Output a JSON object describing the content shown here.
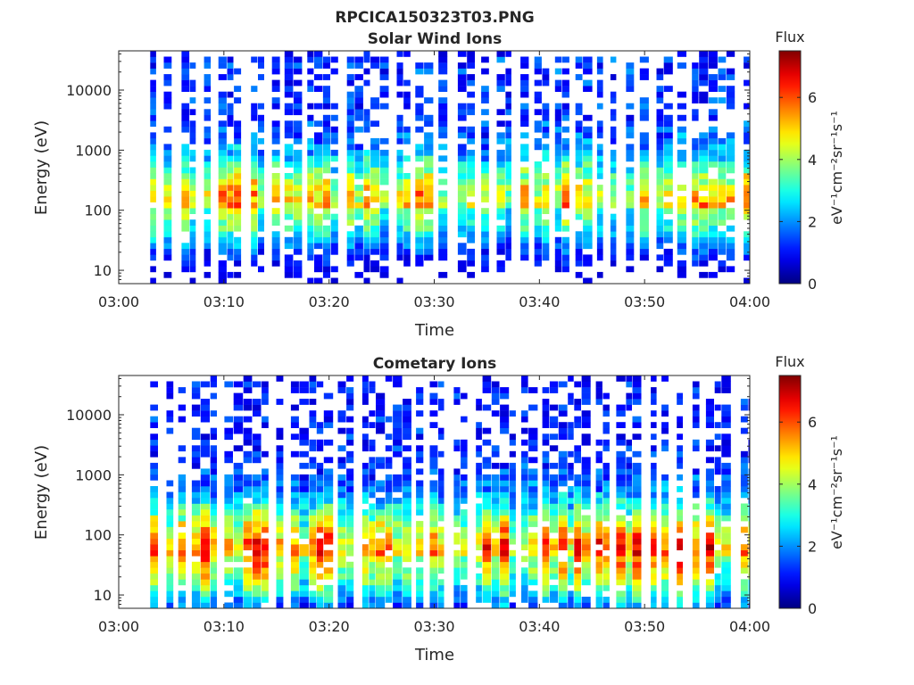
{
  "figure": {
    "title": "RPCICA150323T03.PNG",
    "colors": {
      "text": "#262626",
      "background": "#ffffff",
      "missing": "#ffffff"
    }
  },
  "chart_data": [
    {
      "type": "heatmap",
      "title": "Solar Wind Ions",
      "xlabel": "Time",
      "ylabel": "Energy (eV)",
      "x_range": [
        "03:00",
        "04:00"
      ],
      "x_ticks": [
        "03:00",
        "03:10",
        "03:20",
        "03:30",
        "03:40",
        "03:50",
        "04:00"
      ],
      "y_scale": "log",
      "y_range": [
        6,
        45000
      ],
      "y_ticks": [
        {
          "value": 10,
          "label": "10"
        },
        {
          "value": 100,
          "label": "100"
        },
        {
          "value": 1000,
          "label": "1000"
        },
        {
          "value": 10000,
          "label": "10000"
        }
      ],
      "colorbar": {
        "title": "Flux",
        "label": "eV⁻¹cm⁻²sr⁻¹s⁻¹",
        "range": [
          0,
          7.5
        ],
        "ticks": [
          0,
          2,
          4,
          6
        ],
        "colormap": "jet"
      },
      "data_start": "03:03",
      "data_end": "04:00",
      "energy_profile": {
        "peak_energy_eV": 120,
        "peak_flux": 4.7,
        "width_decades": 0.55,
        "high_energy_tail": 1.2
      }
    },
    {
      "type": "heatmap",
      "title": "Cometary Ions",
      "xlabel": "Time",
      "ylabel": "Energy (eV)",
      "x_range": [
        "03:00",
        "04:00"
      ],
      "x_ticks": [
        "03:00",
        "03:10",
        "03:20",
        "03:30",
        "03:40",
        "03:50",
        "04:00"
      ],
      "y_scale": "log",
      "y_range": [
        6,
        45000
      ],
      "y_ticks": [
        {
          "value": 10,
          "label": "10"
        },
        {
          "value": 100,
          "label": "100"
        },
        {
          "value": 1000,
          "label": "1000"
        },
        {
          "value": 10000,
          "label": "10000"
        }
      ],
      "colorbar": {
        "title": "Flux",
        "label": "eV⁻¹cm⁻²sr⁻¹s⁻¹",
        "range": [
          0,
          7.5
        ],
        "ticks": [
          0,
          2,
          4,
          6
        ],
        "colormap": "jet"
      },
      "data_start": "03:03",
      "data_end": "04:00",
      "energy_profile": {
        "peak_energy_eV": 45,
        "peak_flux": 6.0,
        "width_decades": 0.6,
        "high_energy_tail": 1.0
      }
    }
  ]
}
